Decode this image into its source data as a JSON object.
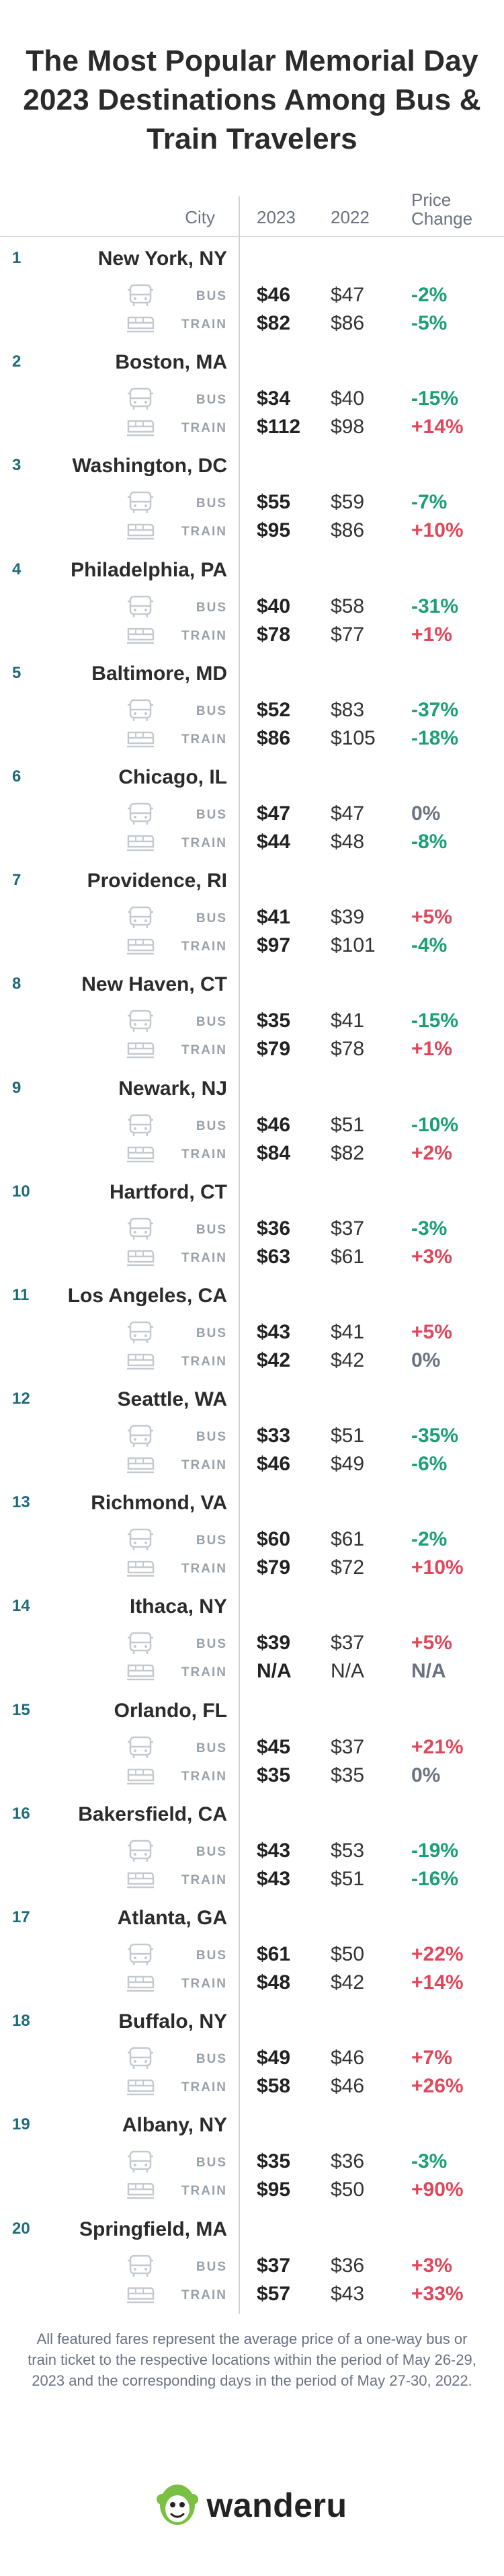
{
  "title": "The Most Popular Memorial Day 2023 Destinations Among Bus & Train Travelers",
  "columns": {
    "city": "City",
    "y2023": "2023",
    "y2022": "2022",
    "price_change": "Price Change"
  },
  "mode_labels": {
    "bus": "BUS",
    "train": "TRAIN"
  },
  "colors": {
    "positive_change": "#e0475b",
    "negative_change": "#19a074",
    "neutral_change": "#6b7280",
    "rank": "#1e6b7b",
    "logo_green": "#7ac143"
  },
  "destinations": [
    {
      "rank": "1",
      "city": "New York, NY",
      "bus": {
        "p2023": "$46",
        "p2022": "$47",
        "change": "-2%"
      },
      "train": {
        "p2023": "$82",
        "p2022": "$86",
        "change": "-5%"
      }
    },
    {
      "rank": "2",
      "city": "Boston, MA",
      "bus": {
        "p2023": "$34",
        "p2022": "$40",
        "change": "-15%"
      },
      "train": {
        "p2023": "$112",
        "p2022": "$98",
        "change": "+14%"
      }
    },
    {
      "rank": "3",
      "city": "Washington, DC",
      "bus": {
        "p2023": "$55",
        "p2022": "$59",
        "change": "-7%"
      },
      "train": {
        "p2023": "$95",
        "p2022": "$86",
        "change": "+10%"
      }
    },
    {
      "rank": "4",
      "city": "Philadelphia, PA",
      "bus": {
        "p2023": "$40",
        "p2022": "$58",
        "change": "-31%"
      },
      "train": {
        "p2023": "$78",
        "p2022": "$77",
        "change": "+1%"
      }
    },
    {
      "rank": "5",
      "city": "Baltimore, MD",
      "bus": {
        "p2023": "$52",
        "p2022": "$83",
        "change": "-37%"
      },
      "train": {
        "p2023": "$86",
        "p2022": "$105",
        "change": "-18%"
      }
    },
    {
      "rank": "6",
      "city": "Chicago, IL",
      "bus": {
        "p2023": "$47",
        "p2022": "$47",
        "change": "0%"
      },
      "train": {
        "p2023": "$44",
        "p2022": "$48",
        "change": "-8%"
      }
    },
    {
      "rank": "7",
      "city": "Providence, RI",
      "bus": {
        "p2023": "$41",
        "p2022": "$39",
        "change": "+5%"
      },
      "train": {
        "p2023": "$97",
        "p2022": "$101",
        "change": "-4%"
      }
    },
    {
      "rank": "8",
      "city": "New Haven, CT",
      "bus": {
        "p2023": "$35",
        "p2022": "$41",
        "change": "-15%"
      },
      "train": {
        "p2023": "$79",
        "p2022": "$78",
        "change": "+1%"
      }
    },
    {
      "rank": "9",
      "city": "Newark, NJ",
      "bus": {
        "p2023": "$46",
        "p2022": "$51",
        "change": "-10%"
      },
      "train": {
        "p2023": "$84",
        "p2022": "$82",
        "change": "+2%"
      }
    },
    {
      "rank": "10",
      "city": "Hartford, CT",
      "bus": {
        "p2023": "$36",
        "p2022": "$37",
        "change": "-3%"
      },
      "train": {
        "p2023": "$63",
        "p2022": "$61",
        "change": "+3%"
      }
    },
    {
      "rank": "11",
      "city": "Los Angeles, CA",
      "bus": {
        "p2023": "$43",
        "p2022": "$41",
        "change": "+5%"
      },
      "train": {
        "p2023": "$42",
        "p2022": "$42",
        "change": "0%"
      }
    },
    {
      "rank": "12",
      "city": "Seattle, WA",
      "bus": {
        "p2023": "$33",
        "p2022": "$51",
        "change": "-35%"
      },
      "train": {
        "p2023": "$46",
        "p2022": "$49",
        "change": "-6%"
      }
    },
    {
      "rank": "13",
      "city": "Richmond, VA",
      "bus": {
        "p2023": "$60",
        "p2022": "$61",
        "change": "-2%"
      },
      "train": {
        "p2023": "$79",
        "p2022": "$72",
        "change": "+10%"
      }
    },
    {
      "rank": "14",
      "city": "Ithaca, NY",
      "bus": {
        "p2023": "$39",
        "p2022": "$37",
        "change": "+5%"
      },
      "train": {
        "p2023": "N/A",
        "p2022": "N/A",
        "change": "N/A"
      }
    },
    {
      "rank": "15",
      "city": "Orlando, FL",
      "bus": {
        "p2023": "$45",
        "p2022": "$37",
        "change": "+21%"
      },
      "train": {
        "p2023": "$35",
        "p2022": "$35",
        "change": "0%"
      }
    },
    {
      "rank": "16",
      "city": "Bakersfield, CA",
      "bus": {
        "p2023": "$43",
        "p2022": "$53",
        "change": "-19%"
      },
      "train": {
        "p2023": "$43",
        "p2022": "$51",
        "change": "-16%"
      }
    },
    {
      "rank": "17",
      "city": "Atlanta, GA",
      "bus": {
        "p2023": "$61",
        "p2022": "$50",
        "change": "+22%"
      },
      "train": {
        "p2023": "$48",
        "p2022": "$42",
        "change": "+14%"
      }
    },
    {
      "rank": "18",
      "city": "Buffalo, NY",
      "bus": {
        "p2023": "$49",
        "p2022": "$46",
        "change": "+7%"
      },
      "train": {
        "p2023": "$58",
        "p2022": "$46",
        "change": "+26%"
      }
    },
    {
      "rank": "19",
      "city": "Albany, NY",
      "bus": {
        "p2023": "$35",
        "p2022": "$36",
        "change": "-3%"
      },
      "train": {
        "p2023": "$95",
        "p2022": "$50",
        "change": "+90%"
      }
    },
    {
      "rank": "20",
      "city": "Springfield, MA",
      "bus": {
        "p2023": "$37",
        "p2022": "$36",
        "change": "+3%"
      },
      "train": {
        "p2023": "$57",
        "p2022": "$43",
        "change": "+33%"
      }
    }
  ],
  "footnote": "All featured fares represent the average price of a one-way bus or train ticket to the respective locations within the period of May 26-29, 2023 and the corresponding days in the period of May 27-30, 2022.",
  "brand": {
    "name": "wanderu",
    "logo_icon": "wanderu-monkey-icon"
  }
}
